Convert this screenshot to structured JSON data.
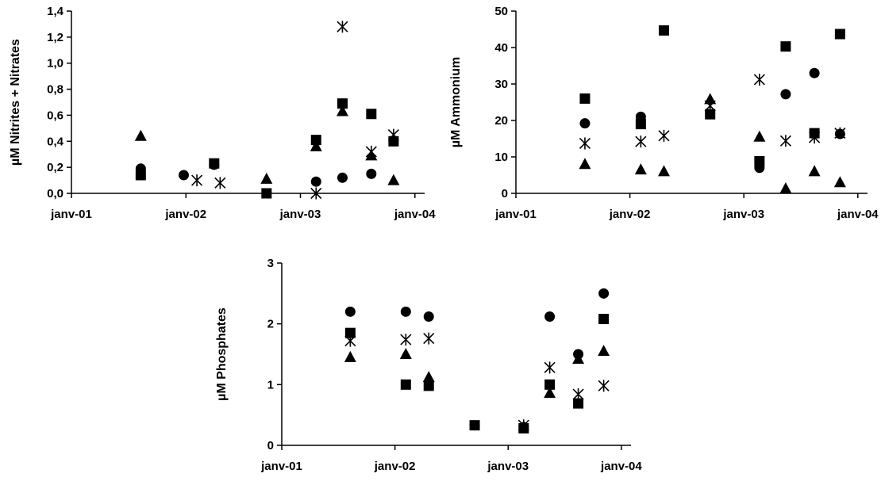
{
  "chart_data": [
    {
      "type": "scatter",
      "ylabel": "µM Nitrites + Nitrates",
      "x_ticks": [
        "janv-01",
        "janv-02",
        "janv-03",
        "janv-04"
      ],
      "xlim": [
        "2001-01-01",
        "2004-02-01"
      ],
      "ylim": [
        0,
        1.4
      ],
      "y_ticks": [
        "0,0",
        "0,2",
        "0,4",
        "0,6",
        "0,8",
        "1,0",
        "1,2",
        "1,4"
      ],
      "grid": false,
      "legend": "none",
      "series": [
        {
          "marker": "circle",
          "points": [
            {
              "x": "2001-08-10",
              "y": 0.19
            },
            {
              "x": "2001-12-25",
              "y": 0.14
            },
            {
              "x": "2002-04-01",
              "y": 0.22
            },
            {
              "x": "2003-02-20",
              "y": 0.09
            },
            {
              "x": "2003-05-15",
              "y": 0.12
            },
            {
              "x": "2003-08-15",
              "y": 0.15
            },
            {
              "x": "2003-10-25",
              "y": 0.4
            }
          ]
        },
        {
          "marker": "square",
          "points": [
            {
              "x": "2001-08-10",
              "y": 0.14
            },
            {
              "x": "2002-04-01",
              "y": 0.23
            },
            {
              "x": "2002-09-15",
              "y": 0.0
            },
            {
              "x": "2003-02-20",
              "y": 0.41
            },
            {
              "x": "2003-05-15",
              "y": 0.69
            },
            {
              "x": "2003-08-15",
              "y": 0.61
            },
            {
              "x": "2003-10-25",
              "y": 0.4
            }
          ]
        },
        {
          "marker": "triangle",
          "points": [
            {
              "x": "2001-08-10",
              "y": 0.44
            },
            {
              "x": "2002-09-15",
              "y": 0.11
            },
            {
              "x": "2003-02-20",
              "y": 0.36
            },
            {
              "x": "2003-05-15",
              "y": 0.63
            },
            {
              "x": "2003-08-15",
              "y": 0.29
            },
            {
              "x": "2003-10-25",
              "y": 0.1
            }
          ]
        },
        {
          "marker": "asterisk",
          "points": [
            {
              "x": "2002-02-05",
              "y": 0.1
            },
            {
              "x": "2002-04-20",
              "y": 0.08
            },
            {
              "x": "2003-02-20",
              "y": 0.0
            },
            {
              "x": "2003-05-15",
              "y": 1.28
            },
            {
              "x": "2003-08-15",
              "y": 0.32
            },
            {
              "x": "2003-10-25",
              "y": 0.45
            }
          ]
        }
      ]
    },
    {
      "type": "scatter",
      "ylabel": "µM Ammonium",
      "x_ticks": [
        "janv-01",
        "janv-02",
        "janv-03",
        "janv-04"
      ],
      "xlim": [
        "2001-01-01",
        "2004-02-01"
      ],
      "ylim": [
        0,
        50
      ],
      "y_ticks": [
        "0",
        "10",
        "20",
        "30",
        "40",
        "50"
      ],
      "grid": false,
      "legend": "none",
      "series": [
        {
          "marker": "circle",
          "points": [
            {
              "x": "2001-08-10",
              "y": 19.2
            },
            {
              "x": "2002-02-05",
              "y": 21.0
            },
            {
              "x": "2003-02-20",
              "y": 7.0
            },
            {
              "x": "2003-05-15",
              "y": 27.2
            },
            {
              "x": "2003-08-15",
              "y": 33.0
            },
            {
              "x": "2003-11-05",
              "y": 16.3
            }
          ]
        },
        {
          "marker": "square",
          "points": [
            {
              "x": "2001-08-10",
              "y": 26.0
            },
            {
              "x": "2002-02-05",
              "y": 19.0
            },
            {
              "x": "2002-04-20",
              "y": 44.7
            },
            {
              "x": "2002-09-15",
              "y": 21.7
            },
            {
              "x": "2003-02-20",
              "y": 8.8
            },
            {
              "x": "2003-05-15",
              "y": 40.3
            },
            {
              "x": "2003-08-15",
              "y": 16.5
            },
            {
              "x": "2003-11-05",
              "y": 43.7
            }
          ]
        },
        {
          "marker": "triangle",
          "points": [
            {
              "x": "2001-08-10",
              "y": 8.0
            },
            {
              "x": "2002-02-05",
              "y": 6.5
            },
            {
              "x": "2002-04-20",
              "y": 6.0
            },
            {
              "x": "2002-09-15",
              "y": 25.8
            },
            {
              "x": "2003-02-20",
              "y": 15.5
            },
            {
              "x": "2003-05-15",
              "y": 1.3
            },
            {
              "x": "2003-08-15",
              "y": 6.0
            },
            {
              "x": "2003-11-05",
              "y": 3.0
            }
          ]
        },
        {
          "marker": "asterisk",
          "points": [
            {
              "x": "2001-08-10",
              "y": 13.7
            },
            {
              "x": "2002-02-05",
              "y": 14.2
            },
            {
              "x": "2002-04-20",
              "y": 15.8
            },
            {
              "x": "2002-09-15",
              "y": 24.0
            },
            {
              "x": "2003-02-20",
              "y": 31.2
            },
            {
              "x": "2003-05-15",
              "y": 14.4
            },
            {
              "x": "2003-08-15",
              "y": 15.3
            },
            {
              "x": "2003-11-05",
              "y": 16.5
            }
          ]
        }
      ]
    },
    {
      "type": "scatter",
      "ylabel": "µM Phosphates",
      "x_ticks": [
        "janv-01",
        "janv-02",
        "janv-03",
        "janv-04"
      ],
      "xlim": [
        "2001-01-01",
        "2004-02-01"
      ],
      "ylim": [
        0,
        3
      ],
      "y_ticks": [
        "0",
        "1",
        "2",
        "3"
      ],
      "grid": false,
      "legend": "none",
      "series": [
        {
          "marker": "circle",
          "points": [
            {
              "x": "2001-08-10",
              "y": 2.2
            },
            {
              "x": "2002-02-05",
              "y": 2.2
            },
            {
              "x": "2002-04-20",
              "y": 2.12
            },
            {
              "x": "2002-09-15",
              "y": 0.33
            },
            {
              "x": "2003-02-20",
              "y": 0.3
            },
            {
              "x": "2003-05-15",
              "y": 2.12
            },
            {
              "x": "2003-08-15",
              "y": 1.5
            },
            {
              "x": "2003-11-05",
              "y": 2.5
            }
          ]
        },
        {
          "marker": "square",
          "points": [
            {
              "x": "2001-08-10",
              "y": 1.85
            },
            {
              "x": "2002-02-05",
              "y": 1.0
            },
            {
              "x": "2002-04-20",
              "y": 0.98
            },
            {
              "x": "2002-09-15",
              "y": 0.33
            },
            {
              "x": "2003-02-20",
              "y": 0.28
            },
            {
              "x": "2003-05-15",
              "y": 1.0
            },
            {
              "x": "2003-08-15",
              "y": 0.69
            },
            {
              "x": "2003-11-05",
              "y": 2.08
            }
          ]
        },
        {
          "marker": "triangle",
          "points": [
            {
              "x": "2001-08-10",
              "y": 1.45
            },
            {
              "x": "2002-02-05",
              "y": 1.5
            },
            {
              "x": "2002-04-20",
              "y": 1.12
            },
            {
              "x": "2003-05-15",
              "y": 0.86
            },
            {
              "x": "2003-08-15",
              "y": 1.42
            },
            {
              "x": "2003-11-05",
              "y": 1.55
            }
          ]
        },
        {
          "marker": "asterisk",
          "points": [
            {
              "x": "2001-08-10",
              "y": 1.72
            },
            {
              "x": "2002-02-05",
              "y": 1.74
            },
            {
              "x": "2002-04-20",
              "y": 1.76
            },
            {
              "x": "2003-02-20",
              "y": 0.33
            },
            {
              "x": "2003-05-15",
              "y": 1.28
            },
            {
              "x": "2003-08-15",
              "y": 0.84
            },
            {
              "x": "2003-11-05",
              "y": 0.98
            }
          ]
        }
      ]
    }
  ]
}
